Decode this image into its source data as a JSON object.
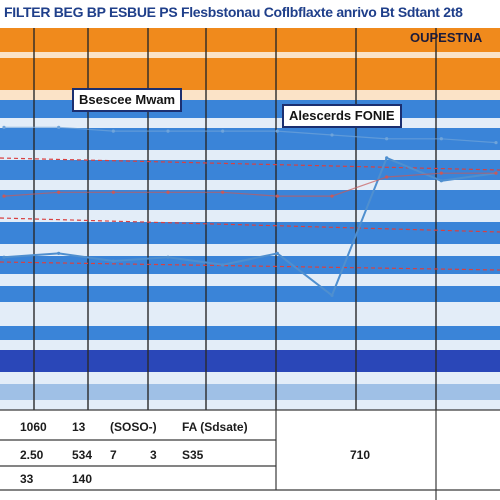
{
  "chart_data": {
    "type": "line",
    "title": "FILTER BEG BP ESBUE PS Flesbstonau Coflbflaxte anrivo Bt Sdtant 2t8",
    "header_label": "OUPESTNA",
    "series": [
      {
        "name": "Bsescee Mwam",
        "values": [
          40,
          41,
          39,
          40,
          38,
          41,
          30,
          66,
          60,
          62
        ]
      },
      {
        "name": "Alescerds FONIE",
        "values": [
          56,
          57,
          57,
          57,
          57,
          56,
          56,
          61,
          62,
          62
        ]
      },
      {
        "name": "",
        "values": [
          74,
          74,
          73,
          73,
          73,
          73,
          72,
          71,
          71,
          70
        ]
      }
    ],
    "x": [
      1,
      2,
      3,
      4,
      5,
      6,
      7,
      8,
      9,
      10
    ],
    "ylim": [
      0,
      100
    ],
    "grid": true,
    "colors": {
      "band_orange": "#f08a1c",
      "band_blue": "#3a84d8",
      "band_navy": "#2a47b8",
      "band_light": "#e3edf8",
      "series_line": "#4f8fcf",
      "dashed_red": "#d94040",
      "grid_line": "#2a2a2a"
    },
    "table": {
      "rows": [
        [
          "1060",
          "13",
          "(SOSO-)",
          "",
          "FA (Sdsate)",
          "",
          "",
          ""
        ],
        [
          "2.50",
          "534",
          "7",
          "3",
          "S35",
          "",
          "710",
          ""
        ],
        [
          "33",
          "140",
          "",
          "",
          "",
          "",
          "",
          ""
        ]
      ]
    }
  }
}
